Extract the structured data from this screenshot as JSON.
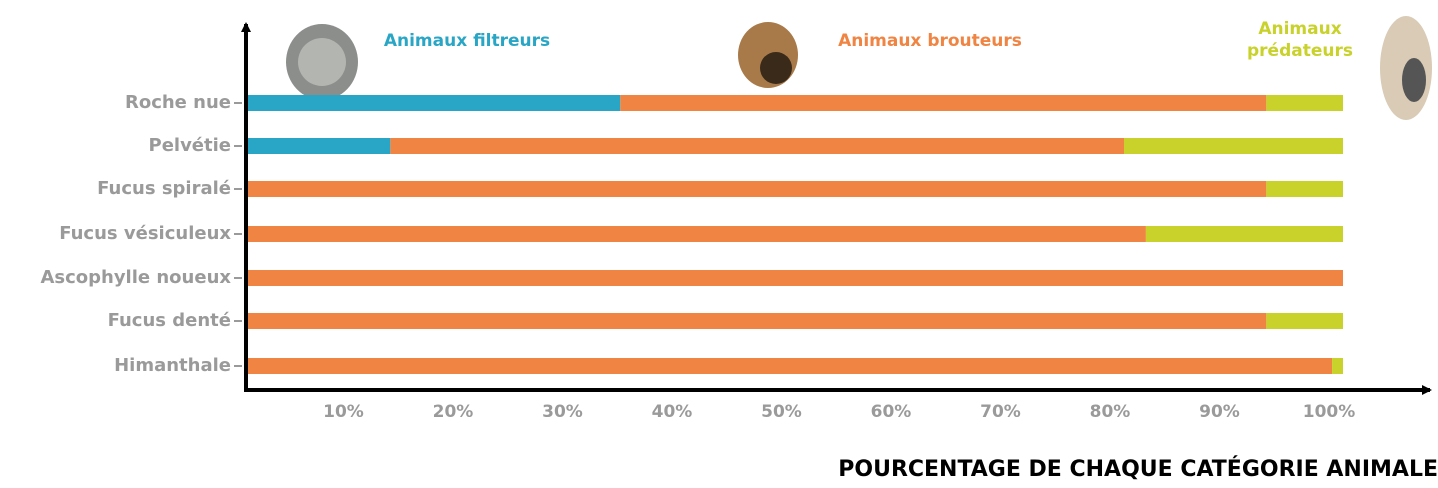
{
  "chart_data": {
    "type": "stacked-barh",
    "xlabel": "POURCENTAGE DE CHAQUE CATÉGORIE ANIMALE",
    "categories": [
      "Roche nue",
      "Pelvétie",
      "Fucus spiralé",
      "Fucus vésiculeux",
      "Ascophylle noueux",
      "Fucus denté",
      "Himanthale"
    ],
    "series": [
      {
        "name": "Animaux filtreurs",
        "color": "#29a6c6",
        "values": [
          34,
          13,
          0,
          0,
          0,
          0,
          0
        ]
      },
      {
        "name": "Animaux brouteurs",
        "color": "#f08442",
        "values": [
          59,
          67,
          93,
          82,
          100,
          93,
          99
        ]
      },
      {
        "name": "Animaux prédateurs",
        "color": "#c8d22a",
        "values": [
          7,
          20,
          7,
          18,
          0,
          7,
          1
        ]
      }
    ],
    "xlim": [
      0,
      100
    ],
    "xticks": [
      {
        "value": 10,
        "label": "10%"
      },
      {
        "value": 20,
        "label": "20%"
      },
      {
        "value": 30,
        "label": "30%"
      },
      {
        "value": 40,
        "label": "40%"
      },
      {
        "value": 50,
        "label": "50%"
      },
      {
        "value": 60,
        "label": "60%"
      },
      {
        "value": 70,
        "label": "70%"
      },
      {
        "value": 80,
        "label": "80%"
      },
      {
        "value": 90,
        "label": "90%"
      },
      {
        "value": 100,
        "label": "100%"
      }
    ],
    "grid": false
  }
}
